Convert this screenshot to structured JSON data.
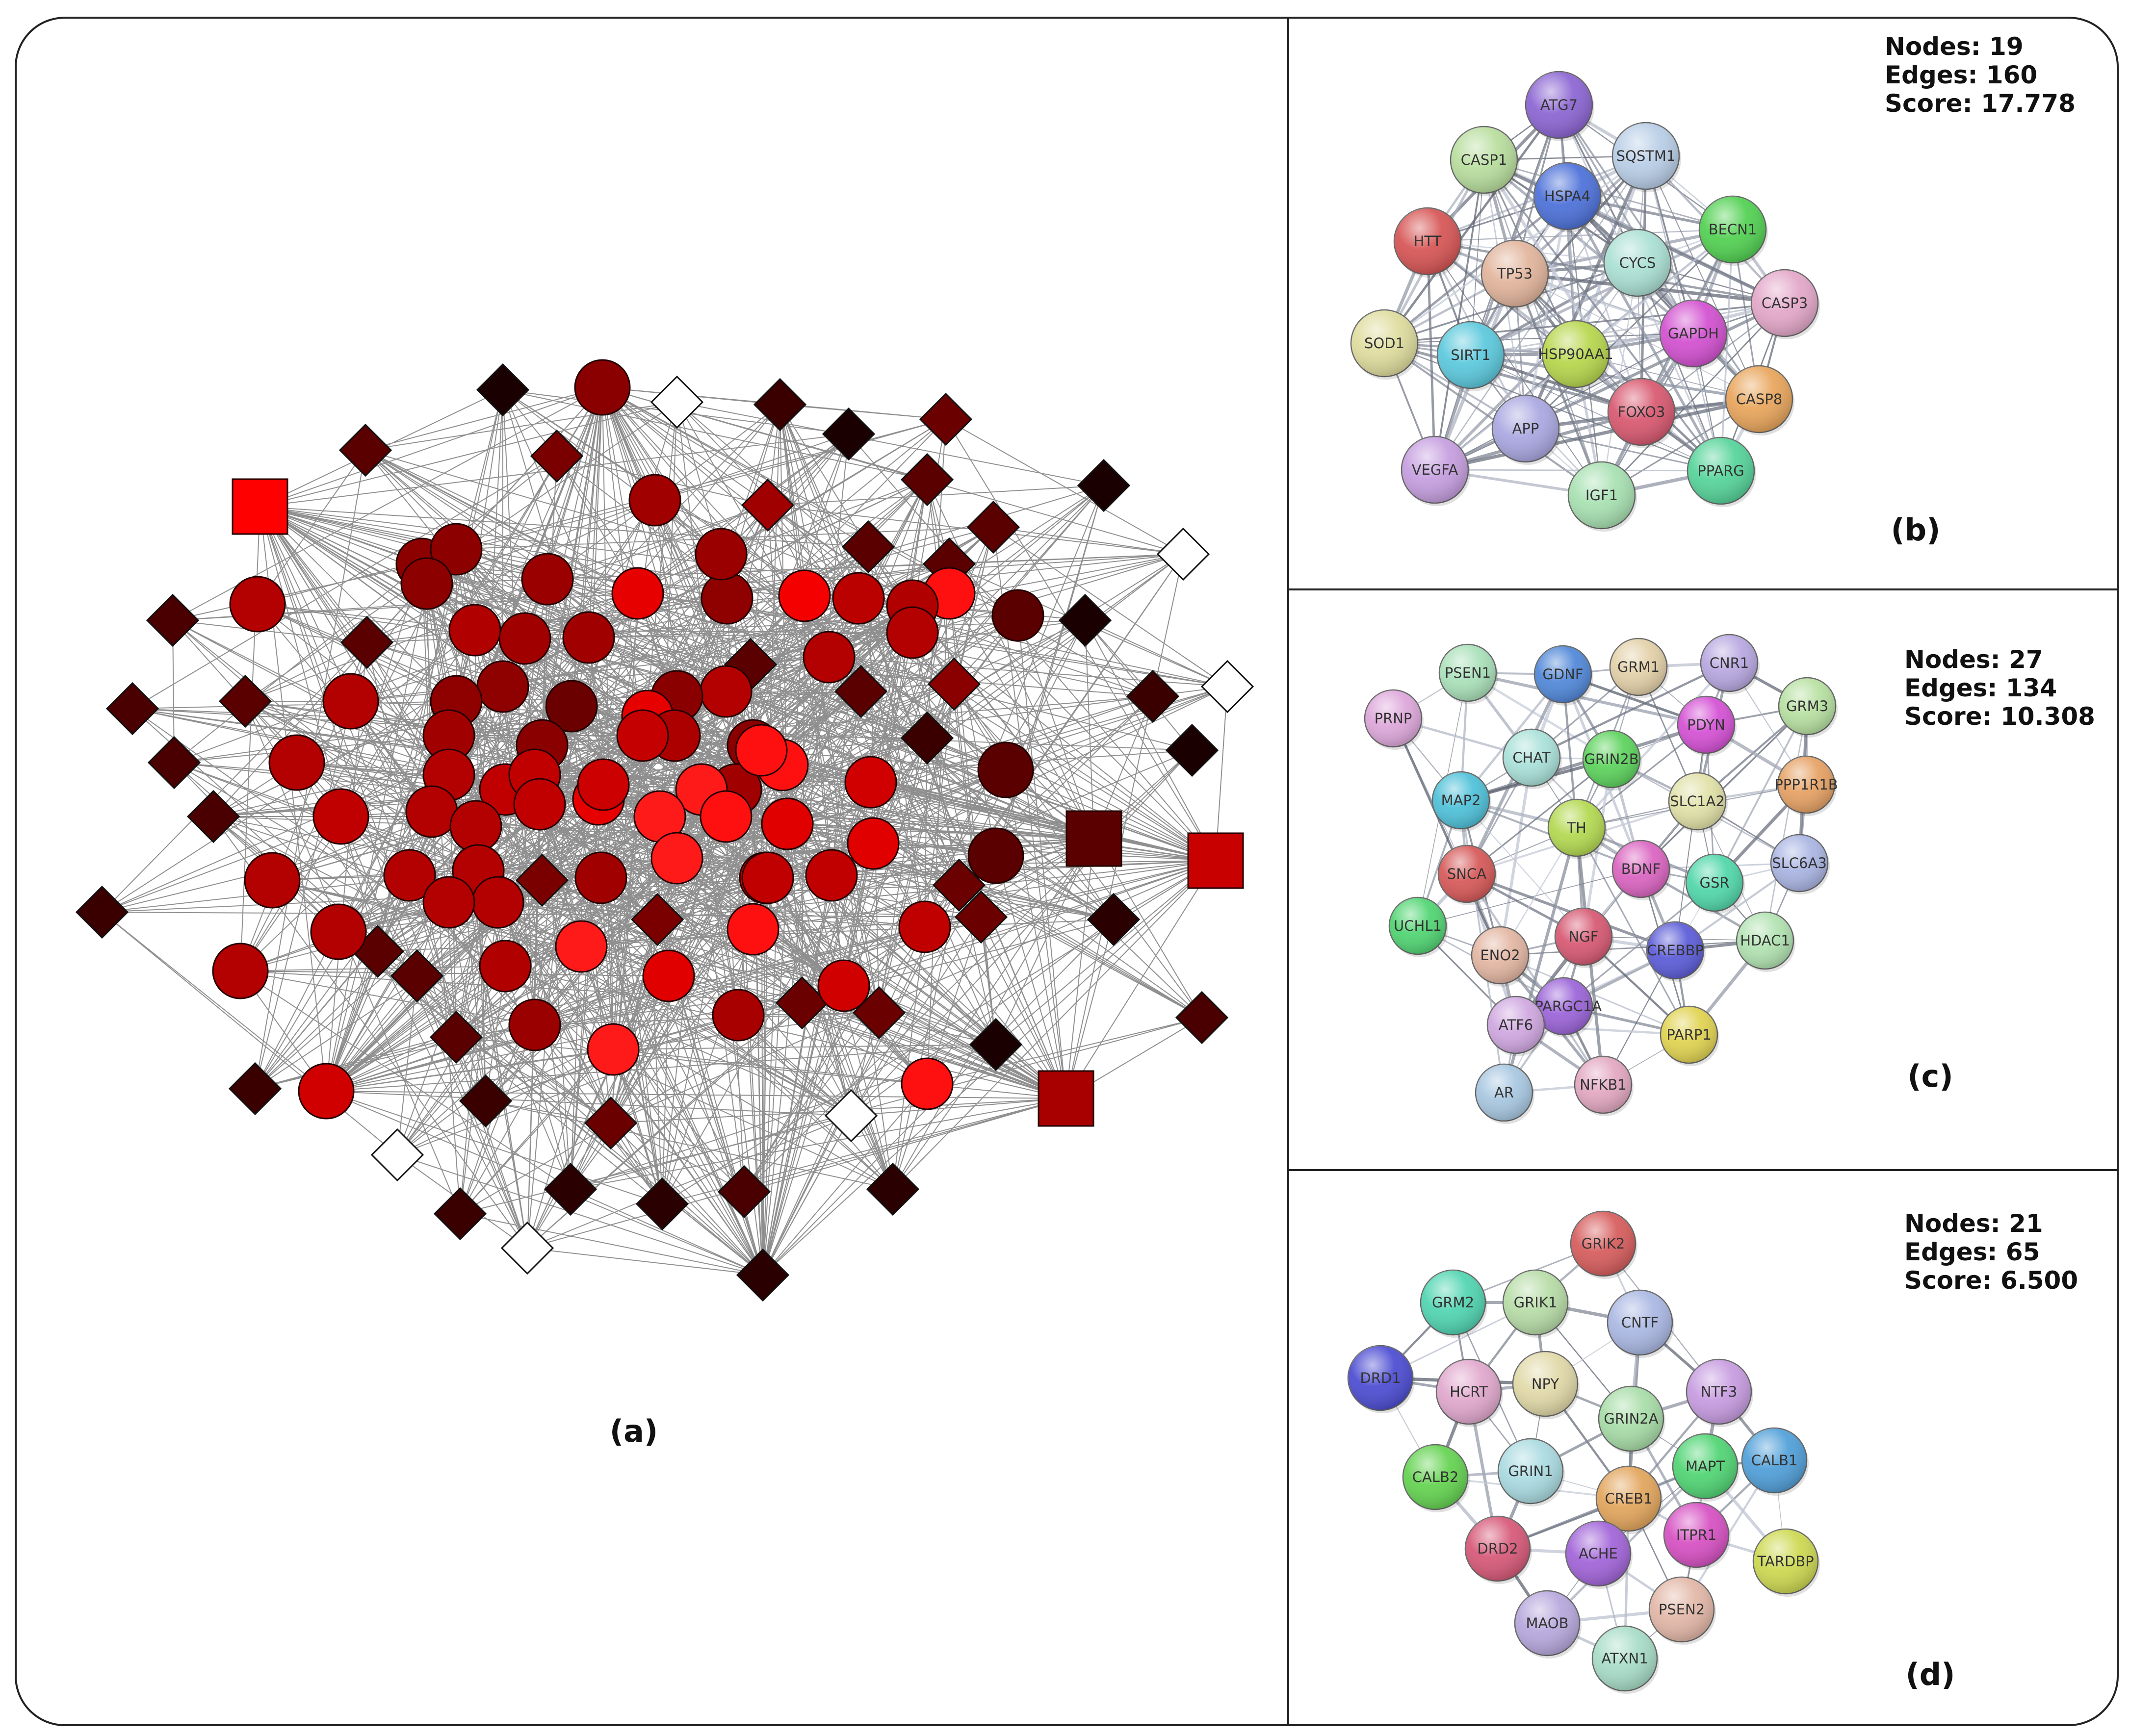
{
  "panels": {
    "a": {
      "caption": "(a)"
    },
    "b": {
      "caption": "(b)",
      "stats": [
        "Nodes: 19",
        "Edges: 160",
        "Score: 17.778"
      ],
      "nodes": [
        {
          "label": "ATG7",
          "color": "#8a63d2"
        },
        {
          "label": "SQSTM1",
          "color": "#b7cde6"
        },
        {
          "label": "CASP1",
          "color": "#b7dd9c"
        },
        {
          "label": "HSPA4",
          "color": "#4a6fd8"
        },
        {
          "label": "BECN1",
          "color": "#4fd04f"
        },
        {
          "label": "HTT",
          "color": "#d65252"
        },
        {
          "label": "CYCS",
          "color": "#a9dfd3"
        },
        {
          "label": "TP53",
          "color": "#e1b39a"
        },
        {
          "label": "CASP3",
          "color": "#e3a6c8"
        },
        {
          "label": "GAPDH",
          "color": "#d24ed0"
        },
        {
          "label": "SOD1",
          "color": "#dedc9c"
        },
        {
          "label": "SIRT1",
          "color": "#59c8dc"
        },
        {
          "label": "HSP90AA1",
          "color": "#b6d64a"
        },
        {
          "label": "FOXO3",
          "color": "#d8566e"
        },
        {
          "label": "CASP8",
          "color": "#e8a459"
        },
        {
          "label": "APP",
          "color": "#a8a6e0"
        },
        {
          "label": "VEGFA",
          "color": "#c59ddf"
        },
        {
          "label": "IGF1",
          "color": "#a6e0b0"
        },
        {
          "label": "PPARG",
          "color": "#53d398"
        }
      ]
    },
    "c": {
      "caption": "(c)",
      "stats": [
        "Nodes: 27",
        "Edges: 134",
        "Score: 10.308"
      ],
      "nodes": [
        {
          "label": "PSEN1",
          "color": "#a8e0b8"
        },
        {
          "label": "GDNF",
          "color": "#4e86d8"
        },
        {
          "label": "GRM1",
          "color": "#e2cfa6"
        },
        {
          "label": "CNR1",
          "color": "#b7a6e0"
        },
        {
          "label": "PRNP",
          "color": "#dda6da"
        },
        {
          "label": "GRM3",
          "color": "#b6e0a0"
        },
        {
          "label": "PDYN",
          "color": "#d44ed4"
        },
        {
          "label": "CHAT",
          "color": "#a8e0d8"
        },
        {
          "label": "GRIN2B",
          "color": "#5ad25a"
        },
        {
          "label": "PPP1R1B",
          "color": "#e6a062"
        },
        {
          "label": "SLC1A2",
          "color": "#e0e0a6"
        },
        {
          "label": "MAP2",
          "color": "#4cc0d8"
        },
        {
          "label": "TH",
          "color": "#b2d84e"
        },
        {
          "label": "SNCA",
          "color": "#d65656"
        },
        {
          "label": "BDNF",
          "color": "#da62c0"
        },
        {
          "label": "GSR",
          "color": "#4ed6a8"
        },
        {
          "label": "SLC6A3",
          "color": "#a8b4e2"
        },
        {
          "label": "UCHL1",
          "color": "#4ed470"
        },
        {
          "label": "NGF",
          "color": "#d65670"
        },
        {
          "label": "ENO2",
          "color": "#e2b4a0"
        },
        {
          "label": "CREBBP",
          "color": "#5a5ad8"
        },
        {
          "label": "HDAC1",
          "color": "#b0e2b0"
        },
        {
          "label": "PPARGC1A",
          "color": "#9a62d8"
        },
        {
          "label": "ATF6",
          "color": "#cfa6e0"
        },
        {
          "label": "PARP1",
          "color": "#e0d24e"
        },
        {
          "label": "NFKB1",
          "color": "#e2a6c0"
        },
        {
          "label": "AR",
          "color": "#a6c6e0"
        }
      ]
    },
    "d": {
      "caption": "(d)",
      "stats": [
        "Nodes: 21",
        "Edges: 65",
        "Score: 6.500"
      ],
      "nodes": [
        {
          "label": "GRIK2",
          "color": "#d65a5a"
        },
        {
          "label": "GRM2",
          "color": "#4ed4b0"
        },
        {
          "label": "GRIK1",
          "color": "#b6dca6"
        },
        {
          "label": "CNTF",
          "color": "#a8b6e2"
        },
        {
          "label": "DRD1",
          "color": "#4a4ad2"
        },
        {
          "label": "HCRT",
          "color": "#e0a6cc"
        },
        {
          "label": "NPY",
          "color": "#e0d8a6"
        },
        {
          "label": "NTF3",
          "color": "#c69ae0"
        },
        {
          "label": "GRIN2A",
          "color": "#a6dca6"
        },
        {
          "label": "CALB2",
          "color": "#62d24e"
        },
        {
          "label": "GRIN1",
          "color": "#a8dae0"
        },
        {
          "label": "MAPT",
          "color": "#4ed472"
        },
        {
          "label": "CALB1",
          "color": "#4e9ed8"
        },
        {
          "label": "CREB1",
          "color": "#e2a45a"
        },
        {
          "label": "DRD2",
          "color": "#d65676"
        },
        {
          "label": "ACHE",
          "color": "#a062d8"
        },
        {
          "label": "ITPR1",
          "color": "#d64ec2"
        },
        {
          "label": "TARDBP",
          "color": "#ccd84e"
        },
        {
          "label": "MAOB",
          "color": "#b6a6dc"
        },
        {
          "label": "PSEN2",
          "color": "#e2b6a6"
        },
        {
          "label": "ATXN1",
          "color": "#a6dcc6"
        }
      ]
    }
  }
}
